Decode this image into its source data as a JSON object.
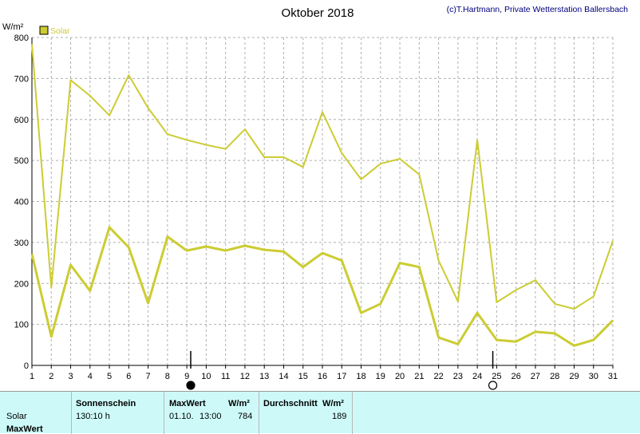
{
  "chart_data": {
    "type": "line",
    "title": "Oktober 2018",
    "credit": "(c)T.Hartmann, Private Wetterstation Ballersbach",
    "ylabel": "W/m²",
    "ylim": [
      0,
      800
    ],
    "yticks": [
      0,
      100,
      200,
      300,
      400,
      500,
      600,
      700,
      800
    ],
    "x": [
      1,
      2,
      3,
      4,
      5,
      6,
      7,
      8,
      9,
      10,
      11,
      12,
      13,
      14,
      15,
      16,
      17,
      18,
      19,
      20,
      21,
      22,
      23,
      24,
      25,
      26,
      27,
      28,
      29,
      30,
      31
    ],
    "xlim": [
      1,
      31
    ],
    "grid": true,
    "legend": {
      "position": "top-left",
      "entries": [
        "Solar"
      ]
    },
    "series": [
      {
        "name": "Solar",
        "color": "#cccc33",
        "values": [
          272,
          70,
          245,
          182,
          337,
          288,
          152,
          314,
          280,
          290,
          280,
          292,
          282,
          278,
          240,
          274,
          256,
          128,
          150,
          250,
          240,
          68,
          52,
          128,
          62,
          58,
          82,
          78,
          48,
          62,
          110
        ]
      },
      {
        "color": "#cccc33",
        "values": [
          784,
          190,
          696,
          658,
          610,
          708,
          628,
          564,
          550,
          538,
          528,
          576,
          508,
          508,
          484,
          618,
          518,
          454,
          492,
          504,
          466,
          256,
          156,
          550,
          154,
          184,
          208,
          150,
          138,
          168,
          304
        ]
      }
    ],
    "moon_markers": [
      {
        "day": 9.2,
        "phase": "new"
      },
      {
        "day": 24.8,
        "phase": "full"
      }
    ]
  },
  "footer": {
    "row_label_solar": "Solar",
    "row_label_maxwert": "MaxWert",
    "sonnenschein_header": "Sonnenschein",
    "sonnenschein_value": "130:10 h",
    "maxwert_header": "MaxWert",
    "maxwert_unit": "W/m²",
    "maxwert_date": "01.10.",
    "maxwert_time": "13:00",
    "maxwert_value": "784",
    "durchschnitt_header": "Durchschnitt",
    "durchschnitt_unit": "W/m²",
    "durchschnitt_value": "189"
  }
}
